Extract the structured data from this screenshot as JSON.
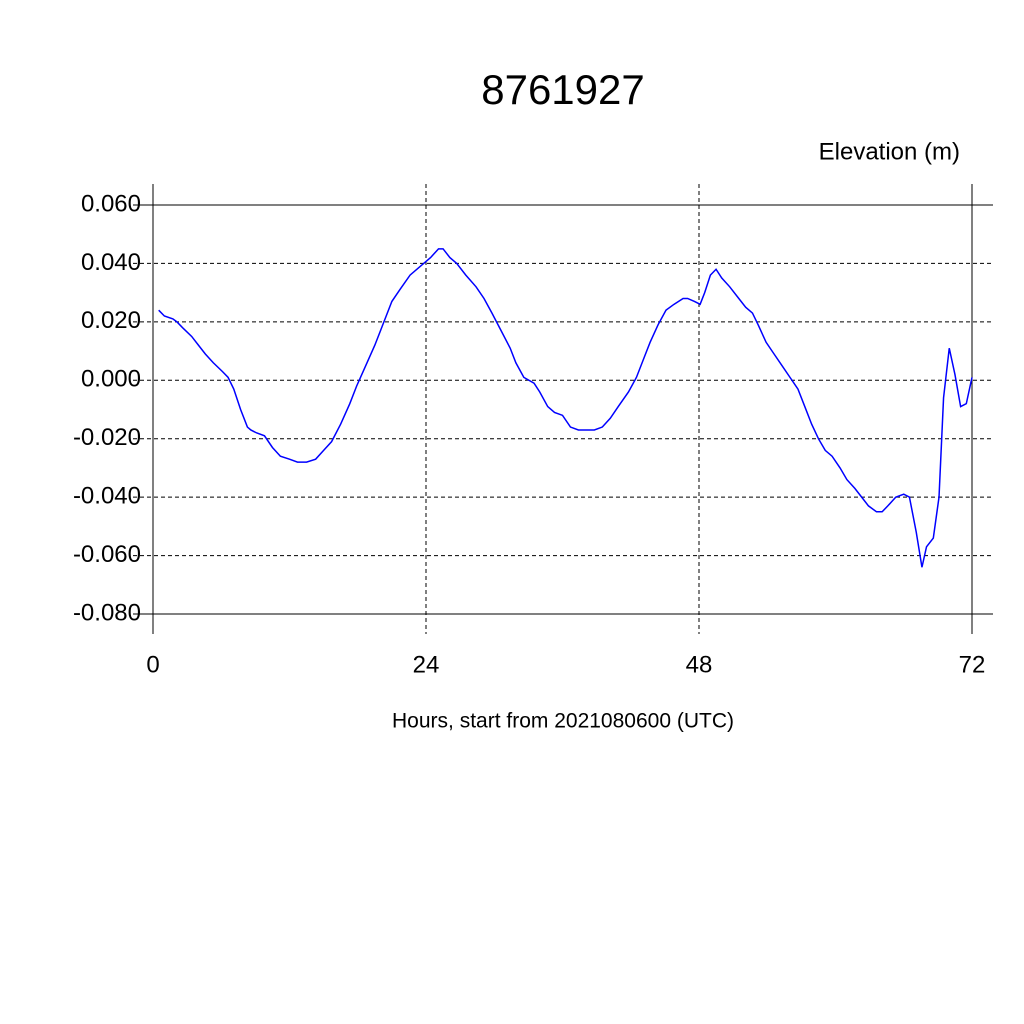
{
  "chart_data": {
    "type": "line",
    "title": "8761927",
    "ylabel": "Elevation (m)",
    "xlabel": "Hours, start from 2021080600 (UTC)",
    "series": [
      {
        "color": "#0000ff",
        "x": [
          0.5,
          1,
          1.75,
          2.1,
          2.6,
          3.4,
          4,
          4.6,
          5.3,
          6.1,
          6.6,
          7.1,
          7.7,
          8.3,
          8.6,
          9.1,
          9.8,
          10.5,
          11.2,
          12,
          12.7,
          13.5,
          14.3,
          15,
          15.7,
          16.5,
          17.3,
          17.9,
          18.7,
          19.5,
          20.3,
          21,
          21.7,
          22.6,
          23.5,
          24.4,
          25.1,
          25.5,
          26.1,
          26.7,
          27.5,
          28.4,
          29.1,
          29.8,
          30.6,
          31.4,
          31.9,
          32.6,
          33.5,
          34,
          34.7,
          35.3,
          36,
          36.7,
          37.4,
          38.1,
          38.8,
          39.5,
          40.2,
          40.9,
          41.8,
          42.5,
          43.2,
          43.7,
          44.4,
          45.1,
          45.8,
          46.6,
          47,
          47.6,
          48.1,
          48.5,
          49,
          49.5,
          50,
          50.7,
          51.5,
          52.1,
          52.7,
          53.2,
          53.9,
          54.6,
          55.3,
          56,
          56.7,
          57.3,
          57.9,
          58.5,
          59.1,
          59.7,
          60.4,
          61,
          61.7,
          62.3,
          62.9,
          63.6,
          64.1,
          64.6,
          65.3,
          66,
          66.5,
          67.1,
          67.6,
          68,
          68.6,
          69.1,
          69.5,
          70,
          70.5,
          71,
          71.5,
          72
        ],
        "values": [
          0.024,
          0.022,
          0.021,
          0.02,
          0.018,
          0.015,
          0.012,
          0.009,
          0.006,
          0.003,
          0.001,
          -0.003,
          -0.01,
          -0.016,
          -0.017,
          -0.018,
          -0.019,
          -0.023,
          -0.026,
          -0.027,
          -0.028,
          -0.028,
          -0.027,
          -0.024,
          -0.021,
          -0.015,
          -0.008,
          -0.002,
          0.005,
          0.012,
          0.02,
          0.027,
          0.031,
          0.036,
          0.039,
          0.042,
          0.045,
          0.045,
          0.042,
          0.04,
          0.036,
          0.032,
          0.028,
          0.023,
          0.017,
          0.011,
          0.006,
          0.001,
          -0.001,
          -0.004,
          -0.009,
          -0.011,
          -0.012,
          -0.016,
          -0.017,
          -0.017,
          -0.017,
          -0.016,
          -0.013,
          -0.009,
          -0.004,
          0.001,
          0.008,
          0.013,
          0.019,
          0.024,
          0.026,
          0.028,
          0.028,
          0.027,
          0.026,
          0.03,
          0.036,
          0.038,
          0.035,
          0.032,
          0.028,
          0.025,
          0.023,
          0.019,
          0.013,
          0.009,
          0.005,
          0.001,
          -0.003,
          -0.009,
          -0.015,
          -0.02,
          -0.024,
          -0.026,
          -0.03,
          -0.034,
          -0.037,
          -0.04,
          -0.043,
          -0.045,
          -0.045,
          -0.043,
          -0.04,
          -0.039,
          -0.04,
          -0.052,
          -0.064,
          -0.057,
          -0.054,
          -0.04,
          -0.006,
          0.011,
          0.002,
          -0.009,
          -0.008,
          0.001
        ]
      }
    ],
    "xlim": [
      0,
      72
    ],
    "xticks": [
      0,
      24,
      48,
      72
    ],
    "ylim": [
      -0.08,
      0.06
    ],
    "yticks": [
      {
        "value": -0.08,
        "label": "-0.080"
      },
      {
        "value": -0.06,
        "label": "-0.060"
      },
      {
        "value": -0.04,
        "label": "-0.040"
      },
      {
        "value": -0.02,
        "label": "-0.020"
      },
      {
        "value": 0,
        "label": "0.000"
      },
      {
        "value": 0.02,
        "label": "0.020"
      },
      {
        "value": 0.04,
        "label": "0.040"
      },
      {
        "value": 0.06,
        "label": "0.060"
      }
    ],
    "grid": true
  }
}
